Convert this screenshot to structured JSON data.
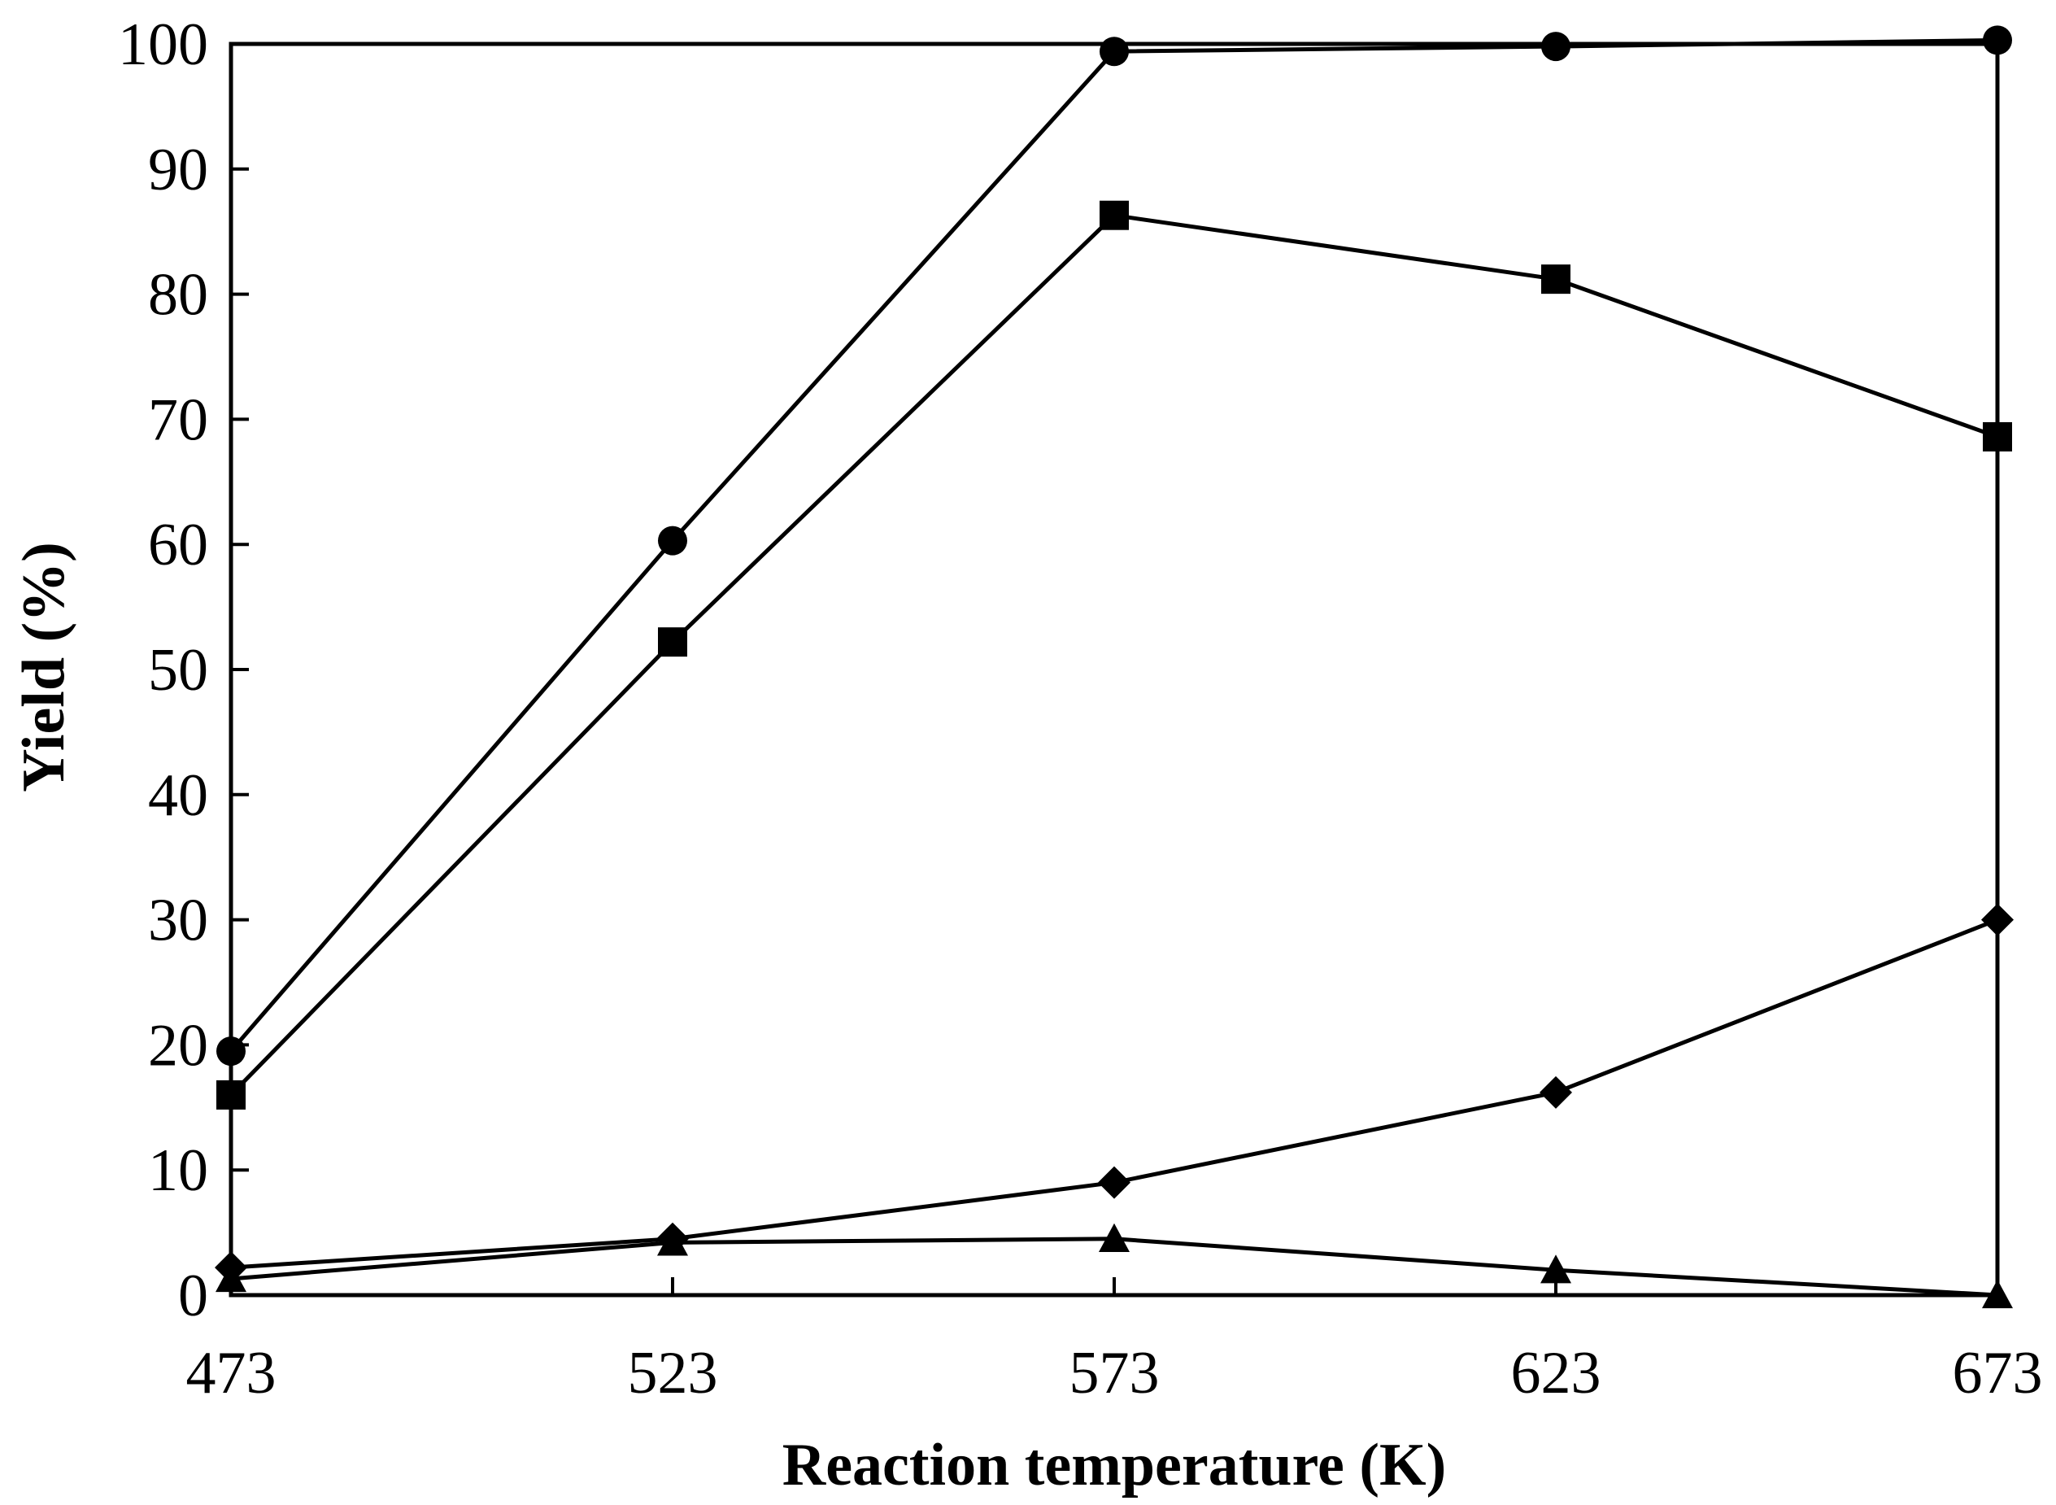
{
  "chart_data": {
    "type": "line",
    "title": "",
    "xlabel": "Reaction temperature (K)",
    "ylabel": "Yield (%)",
    "categories": [
      "473",
      "523",
      "573",
      "623",
      "673"
    ],
    "x": [
      473,
      523,
      573,
      623,
      673
    ],
    "xlim": [
      473,
      673
    ],
    "ylim": [
      0,
      100
    ],
    "yticks": [
      "0",
      "10",
      "20",
      "30",
      "40",
      "50",
      "60",
      "70",
      "80",
      "90",
      "100"
    ],
    "grid": false,
    "legend": "none",
    "series": [
      {
        "name": "circle series",
        "marker": "circle",
        "values": [
          19.5,
          60.3,
          99.4,
          99.8,
          100.3
        ]
      },
      {
        "name": "square series",
        "marker": "square",
        "values": [
          16.0,
          52.2,
          86.3,
          81.2,
          68.6
        ]
      },
      {
        "name": "diamond series",
        "marker": "diamond",
        "values": [
          2.2,
          4.5,
          9.0,
          16.2,
          30.0
        ]
      },
      {
        "name": "triangle series",
        "marker": "triangle",
        "values": [
          1.3,
          4.2,
          4.5,
          2.0,
          0.0
        ]
      }
    ]
  }
}
